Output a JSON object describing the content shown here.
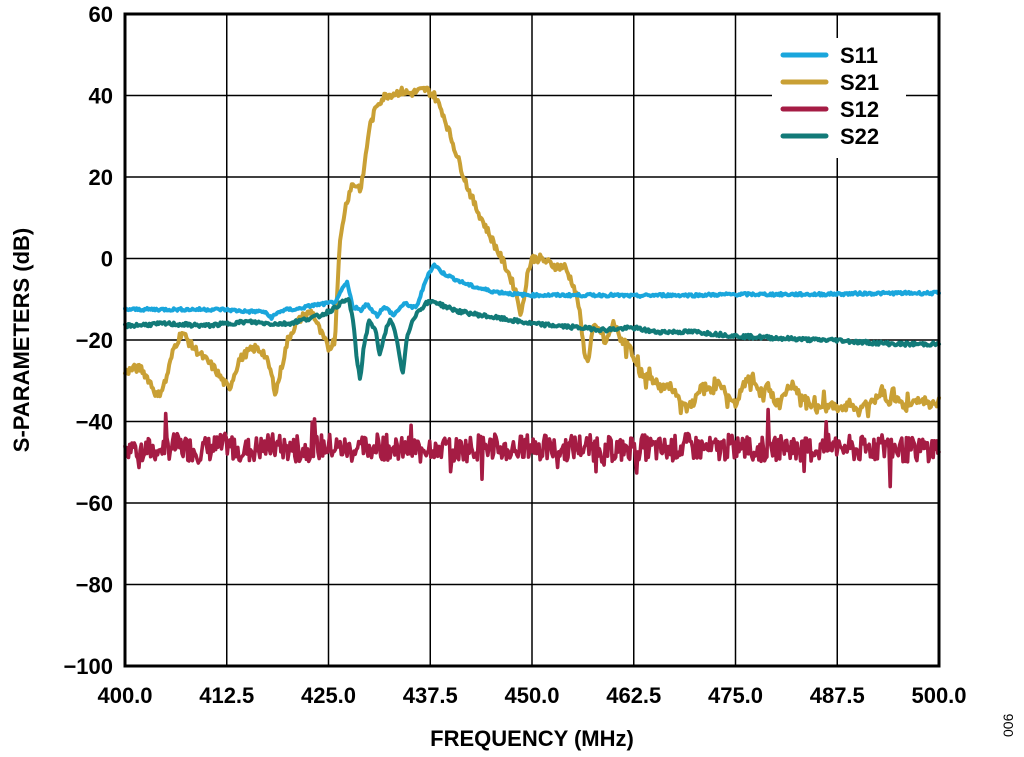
{
  "figure_id": "006",
  "chart_data": {
    "type": "line",
    "title": "",
    "xlabel": "FREQUENCY (MHz)",
    "ylabel": "S-PARAMETERS (dB)",
    "xlim": [
      400,
      500
    ],
    "ylim": [
      -100,
      60
    ],
    "grid": true,
    "legend_position": "top-right",
    "x_ticks": [
      "400.0",
      "412.5",
      "425.0",
      "437.5",
      "450.0",
      "462.5",
      "475.0",
      "487.5",
      "500.0"
    ],
    "y_ticks": [
      "60",
      "40",
      "20",
      "0",
      "−20",
      "−40",
      "−60",
      "−80",
      "−100"
    ],
    "series": [
      {
        "name": "S11",
        "color": "#1aa6dc",
        "points": [
          [
            400,
            -12.5
          ],
          [
            405,
            -12.5
          ],
          [
            410,
            -12.5
          ],
          [
            412,
            -12.5
          ],
          [
            415,
            -13
          ],
          [
            417,
            -13
          ],
          [
            418,
            -14.5
          ],
          [
            419,
            -13
          ],
          [
            420,
            -12.5
          ],
          [
            421,
            -12.5
          ],
          [
            423,
            -11.5
          ],
          [
            425,
            -11
          ],
          [
            426,
            -10.5
          ],
          [
            426.8,
            -7
          ],
          [
            427.3,
            -6
          ],
          [
            428,
            -12
          ],
          [
            428.5,
            -12
          ],
          [
            429,
            -13
          ],
          [
            429.6,
            -11
          ],
          [
            430.3,
            -12.5
          ],
          [
            431,
            -14
          ],
          [
            431.7,
            -12
          ],
          [
            432.3,
            -12.5
          ],
          [
            433,
            -14
          ],
          [
            433.8,
            -12
          ],
          [
            434.5,
            -11
          ],
          [
            435.3,
            -12
          ],
          [
            435.8,
            -12
          ],
          [
            436.5,
            -8
          ],
          [
            437.2,
            -4
          ],
          [
            438,
            -1.5
          ],
          [
            439,
            -3.5
          ],
          [
            440,
            -4.5
          ],
          [
            441,
            -5.5
          ],
          [
            442,
            -6.3
          ],
          [
            443,
            -7
          ],
          [
            444,
            -7.5
          ],
          [
            445,
            -8
          ],
          [
            446,
            -8.3
          ],
          [
            447,
            -8.5
          ],
          [
            448,
            -8.8
          ],
          [
            450,
            -9
          ],
          [
            455,
            -9
          ],
          [
            460,
            -9
          ],
          [
            462.5,
            -9.2
          ],
          [
            465,
            -9
          ],
          [
            470,
            -9
          ],
          [
            475,
            -8.8
          ],
          [
            480,
            -8.8
          ],
          [
            485,
            -8.8
          ],
          [
            490,
            -8.6
          ],
          [
            495,
            -8.5
          ],
          [
            500,
            -8.5
          ]
        ]
      },
      {
        "name": "S21",
        "color": "#c9a035",
        "points": [
          [
            400,
            -28
          ],
          [
            401,
            -27
          ],
          [
            402,
            -27
          ],
          [
            403,
            -30
          ],
          [
            404,
            -34
          ],
          [
            405,
            -30
          ],
          [
            406,
            -22
          ],
          [
            407,
            -18
          ],
          [
            408,
            -21
          ],
          [
            409,
            -23
          ],
          [
            410,
            -25
          ],
          [
            411,
            -27
          ],
          [
            412,
            -30
          ],
          [
            412.8,
            -32
          ],
          [
            413.5,
            -28
          ],
          [
            414,
            -25
          ],
          [
            415,
            -23
          ],
          [
            416,
            -22
          ],
          [
            417,
            -23
          ],
          [
            417.8,
            -27
          ],
          [
            418.5,
            -33
          ],
          [
            419.2,
            -27
          ],
          [
            420,
            -20
          ],
          [
            421,
            -16
          ],
          [
            422,
            -14
          ],
          [
            423,
            -13
          ],
          [
            424,
            -18
          ],
          [
            425,
            -22
          ],
          [
            425.8,
            -20
          ],
          [
            426.3,
            2
          ],
          [
            427,
            12
          ],
          [
            427.8,
            18
          ],
          [
            428.5,
            18
          ],
          [
            429,
            17
          ],
          [
            429.5,
            24
          ],
          [
            430,
            32
          ],
          [
            431,
            38
          ],
          [
            432,
            40
          ],
          [
            433,
            40.5
          ],
          [
            434,
            41
          ],
          [
            435,
            40.5
          ],
          [
            436,
            41
          ],
          [
            437,
            41.5
          ],
          [
            438,
            40
          ],
          [
            439,
            36
          ],
          [
            440,
            30
          ],
          [
            441,
            24
          ],
          [
            442,
            18
          ],
          [
            443,
            13
          ],
          [
            444,
            9
          ],
          [
            445,
            5
          ],
          [
            446,
            1
          ],
          [
            447,
            -3
          ],
          [
            448,
            -8
          ],
          [
            448.7,
            -14
          ],
          [
            449.4,
            -4
          ],
          [
            450,
            0
          ],
          [
            451,
            0
          ],
          [
            452,
            -1
          ],
          [
            453,
            -2
          ],
          [
            454,
            -2
          ],
          [
            455,
            -6
          ],
          [
            455.7,
            -11
          ],
          [
            456.3,
            -21
          ],
          [
            456.8,
            -26
          ],
          [
            457.5,
            -17
          ],
          [
            458.5,
            -18
          ],
          [
            459,
            -21
          ],
          [
            460,
            -16
          ],
          [
            461,
            -20
          ],
          [
            462,
            -22
          ],
          [
            462.5,
            -24
          ],
          [
            463,
            -27
          ],
          [
            464,
            -29
          ],
          [
            465,
            -30
          ],
          [
            466,
            -32
          ],
          [
            467,
            -31
          ],
          [
            468,
            -34
          ],
          [
            469,
            -37
          ],
          [
            470,
            -35
          ],
          [
            471,
            -31
          ],
          [
            472,
            -33
          ],
          [
            473,
            -30
          ],
          [
            474,
            -34
          ],
          [
            475,
            -36
          ],
          [
            476,
            -31
          ],
          [
            477,
            -29
          ],
          [
            478,
            -33
          ],
          [
            479,
            -31
          ],
          [
            480,
            -36
          ],
          [
            481,
            -33
          ],
          [
            482,
            -31
          ],
          [
            483,
            -34
          ],
          [
            484,
            -35
          ],
          [
            485,
            -37
          ],
          [
            486,
            -36
          ],
          [
            487,
            -36
          ],
          [
            488,
            -37
          ],
          [
            489,
            -35
          ],
          [
            490,
            -38
          ],
          [
            491,
            -36
          ],
          [
            492,
            -35
          ],
          [
            493,
            -32
          ],
          [
            494,
            -36
          ],
          [
            495,
            -34
          ],
          [
            496,
            -37
          ],
          [
            497,
            -35
          ],
          [
            498,
            -34
          ],
          [
            499,
            -36
          ],
          [
            500,
            -35
          ]
        ]
      },
      {
        "name": "S12",
        "color": "#a51c44",
        "points": [
          [
            400,
            -46
          ],
          [
            403,
            -47
          ],
          [
            406,
            -46
          ],
          [
            409,
            -47
          ],
          [
            412.5,
            -46
          ],
          [
            415,
            -47
          ],
          [
            418,
            -46
          ],
          [
            421,
            -47
          ],
          [
            425,
            -46
          ],
          [
            428,
            -47
          ],
          [
            431,
            -46
          ],
          [
            434,
            -47
          ],
          [
            437.5,
            -46
          ],
          [
            441,
            -47
          ],
          [
            444,
            -46
          ],
          [
            447,
            -47
          ],
          [
            450,
            -46
          ],
          [
            453,
            -47
          ],
          [
            456,
            -46
          ],
          [
            459,
            -47
          ],
          [
            462.5,
            -46
          ],
          [
            466,
            -47
          ],
          [
            469,
            -46
          ],
          [
            472,
            -47
          ],
          [
            475,
            -46
          ],
          [
            478,
            -47
          ],
          [
            481,
            -46
          ],
          [
            484,
            -47
          ],
          [
            487.5,
            -46
          ],
          [
            490,
            -47
          ],
          [
            493,
            -46
          ],
          [
            496,
            -47
          ],
          [
            500,
            -46.5
          ]
        ]
      },
      {
        "name": "S22",
        "color": "#127a78",
        "points": [
          [
            400,
            -16.5
          ],
          [
            405,
            -16
          ],
          [
            410,
            -16.5
          ],
          [
            412.5,
            -16
          ],
          [
            415,
            -15.5
          ],
          [
            418,
            -16
          ],
          [
            420,
            -16
          ],
          [
            422,
            -15
          ],
          [
            424,
            -14
          ],
          [
            425.5,
            -12.5
          ],
          [
            426.5,
            -11
          ],
          [
            427.5,
            -10
          ],
          [
            428,
            -15
          ],
          [
            428.5,
            -25
          ],
          [
            428.9,
            -30
          ],
          [
            429.3,
            -22
          ],
          [
            430,
            -15
          ],
          [
            430.8,
            -18
          ],
          [
            431.3,
            -24
          ],
          [
            431.8,
            -19
          ],
          [
            432.5,
            -15
          ],
          [
            433,
            -17
          ],
          [
            433.6,
            -22
          ],
          [
            434.1,
            -29
          ],
          [
            434.6,
            -20
          ],
          [
            435.3,
            -15
          ],
          [
            436,
            -13
          ],
          [
            437,
            -11
          ],
          [
            438,
            -10.5
          ],
          [
            439,
            -11.5
          ],
          [
            441,
            -13
          ],
          [
            444,
            -14
          ],
          [
            447,
            -15
          ],
          [
            450,
            -16
          ],
          [
            453,
            -16.5
          ],
          [
            456,
            -17
          ],
          [
            459,
            -17.5
          ],
          [
            462.5,
            -17
          ],
          [
            465,
            -18
          ],
          [
            470,
            -18
          ],
          [
            475,
            -19
          ],
          [
            480,
            -19.5
          ],
          [
            485,
            -20
          ],
          [
            487.5,
            -20
          ],
          [
            490,
            -20.5
          ],
          [
            495,
            -21
          ],
          [
            500,
            -21
          ]
        ]
      }
    ]
  }
}
